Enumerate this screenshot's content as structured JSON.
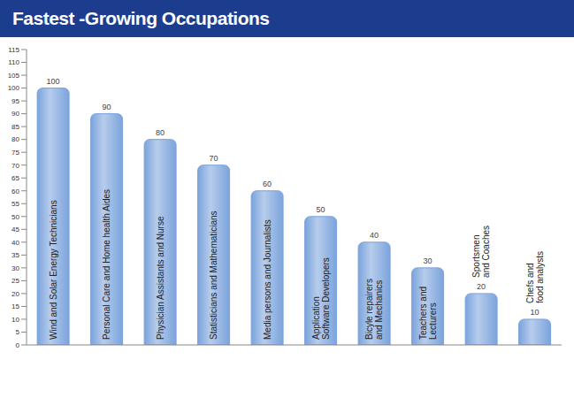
{
  "chart_data": {
    "type": "bar",
    "title": "Fastest -Growing Occupations",
    "categories": [
      "Wind and Solar Energy Technicians",
      "Personal Care and Home health Aides",
      "Physician Assistants and Nurse",
      "Statisticians and Mathematicians",
      "Media persons and Journalists",
      "Application Software Developers",
      "Bicyle repairers and Mechanics",
      "Teachers and Lecturers",
      "Sportsmen and Coaches",
      "Chefs and food analysts"
    ],
    "values": [
      100,
      90,
      80,
      70,
      60,
      50,
      40,
      30,
      20,
      10
    ],
    "color": "#7ba3dc",
    "ylim": [
      0,
      115
    ],
    "yticks": [
      0,
      5,
      10,
      15,
      20,
      25,
      30,
      35,
      40,
      45,
      50,
      55,
      60,
      65,
      70,
      75,
      80,
      85,
      90,
      95,
      100,
      105,
      110,
      115
    ],
    "grid": false,
    "data_labels": true,
    "tick_labels": "y"
  }
}
